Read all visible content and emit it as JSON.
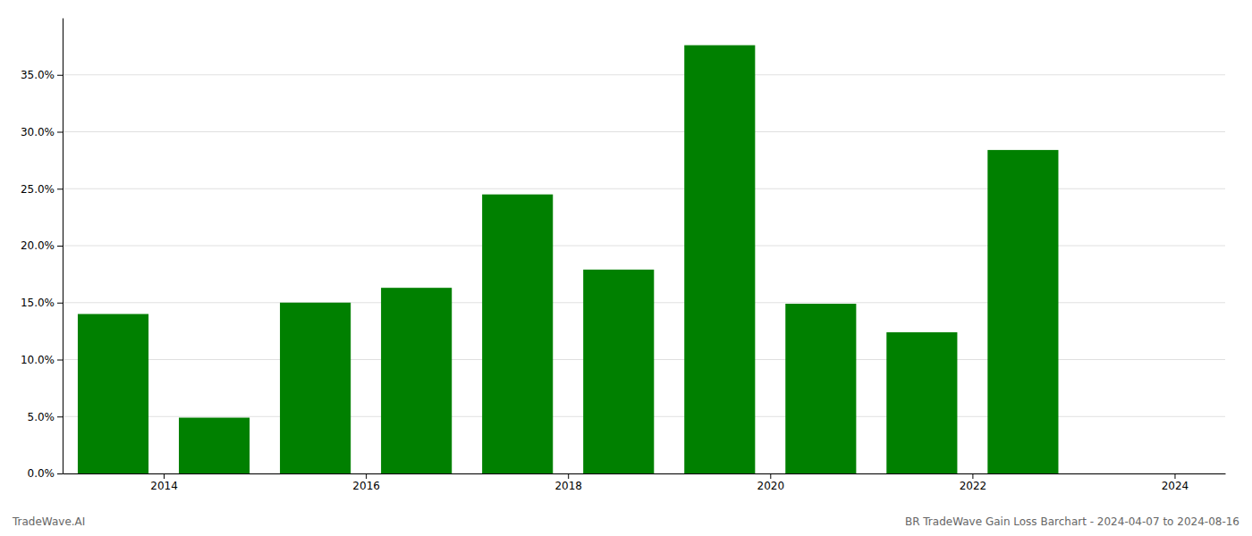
{
  "chart_data": {
    "type": "bar",
    "x": [
      2013.5,
      2014.5,
      2015.5,
      2016.5,
      2017.5,
      2018.5,
      2019.5,
      2020.5,
      2021.5,
      2022.5
    ],
    "values": [
      0.14,
      0.049,
      0.15,
      0.163,
      0.245,
      0.179,
      0.376,
      0.149,
      0.124,
      0.284
    ],
    "color": "#008000",
    "xlim": [
      2013.0,
      2024.5
    ],
    "xticks": [
      2014,
      2016,
      2018,
      2020,
      2022,
      2024
    ],
    "ylim": [
      0,
      0.4
    ],
    "yticks": [
      {
        "value": 0.0,
        "label": "0.0%"
      },
      {
        "value": 0.05,
        "label": "5.0%"
      },
      {
        "value": 0.1,
        "label": "10.0%"
      },
      {
        "value": 0.15,
        "label": "15.0%"
      },
      {
        "value": 0.2,
        "label": "20.0%"
      },
      {
        "value": 0.25,
        "label": "25.0%"
      },
      {
        "value": 0.3,
        "label": "30.0%"
      },
      {
        "value": 0.35,
        "label": "35.0%"
      }
    ],
    "grid": true,
    "annotations": [
      "TradeWave.AI",
      "BR TradeWave Gain Loss Barchart - 2024-04-07 to 2024-08-16"
    ]
  }
}
